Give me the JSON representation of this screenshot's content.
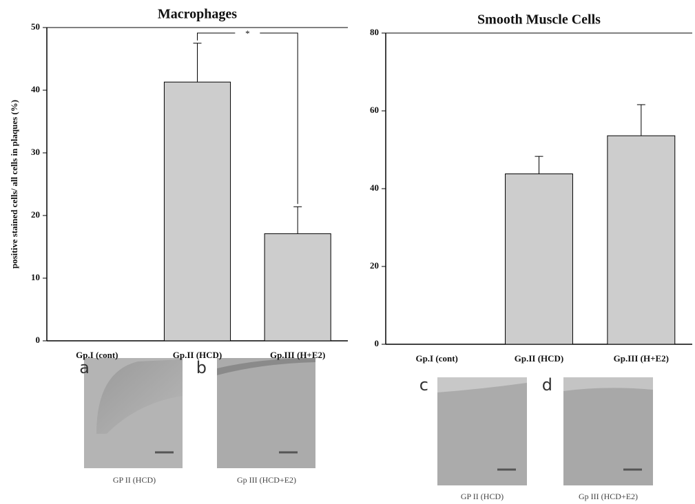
{
  "chart_data": [
    {
      "type": "bar",
      "title": "Macrophages",
      "y_label": "positive stained cells/ all cells in plaques (%)",
      "categories": [
        "Gp.I (cont)",
        "Gp.II (HCD)",
        "Gp.III (H+E2)"
      ],
      "values": [
        0,
        41.3,
        17.1
      ],
      "errors": [
        null,
        6.2,
        4.3
      ],
      "color": "#cdcdcd",
      "ylim": [
        0,
        50
      ],
      "yticks": [
        0,
        10,
        20,
        30,
        40,
        50
      ],
      "annotation": "*"
    },
    {
      "type": "bar",
      "title": "Smooth Muscle Cells",
      "categories": [
        "Gp.I (cont)",
        "Gp.II (HCD)",
        "Gp.III (H+E2)"
      ],
      "values": [
        0,
        43.8,
        53.6
      ],
      "errors": [
        null,
        4.5,
        8.0
      ],
      "color": "#cdcdcd",
      "ylim": [
        0,
        80
      ],
      "yticks": [
        0,
        20,
        40,
        60,
        80
      ]
    }
  ],
  "images": [
    {
      "letter": "a",
      "caption": "GP II (HCD)"
    },
    {
      "letter": "b",
      "caption": "Gp III (HCD+E2)"
    },
    {
      "letter": "c",
      "caption": "GP II (HCD)"
    },
    {
      "letter": "d",
      "caption": "Gp III (HCD+E2)"
    }
  ]
}
